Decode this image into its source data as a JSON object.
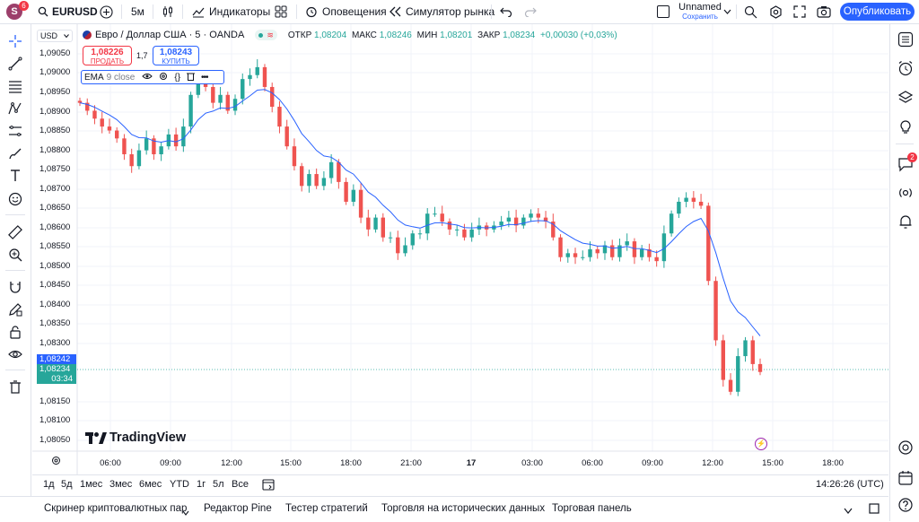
{
  "topbar": {
    "avatar_letter": "S",
    "avatar_badge": "6",
    "symbol": "EURUSD",
    "interval": "5м",
    "indicators": "Индикаторы",
    "alerts": "Оповещения",
    "replay": "Симулятор рынка",
    "layout_name": "Unnamed",
    "layout_status": "Сохранить",
    "publish": "Опубликовать"
  },
  "legend": {
    "title": "Евро / Доллар США · 5 · OANDA",
    "open_label": "ОТКР",
    "open": "1,08204",
    "high_label": "МАКС",
    "high": "1,08246",
    "low_label": "МИН",
    "low": "1,08201",
    "close_label": "ЗАКР",
    "close": "1,08234",
    "change": "+0,00030 (+0,03%)"
  },
  "trade": {
    "sell_price": "1,08226",
    "sell_label": "ПРОДАТЬ",
    "spread": "1,7",
    "buy_price": "1,08243",
    "buy_label": "КУПИТЬ"
  },
  "indicator": {
    "name": "EMA",
    "params": "9 close"
  },
  "currency": "USD",
  "price_axis": [
    "1,09050",
    "1,09000",
    "1,08950",
    "1,08900",
    "1,08850",
    "1,08800",
    "1,08750",
    "1,08700",
    "1,08650",
    "1,08600",
    "1,08550",
    "1,08500",
    "1,08450",
    "1,08400",
    "1,08350",
    "1,08300",
    "1,08150",
    "1,08100",
    "1,08050"
  ],
  "price_tags": {
    "ask": "1,08242",
    "last": "1,08234",
    "countdown": "03:34"
  },
  "time_axis": [
    "06:00",
    "09:00",
    "12:00",
    "15:00",
    "18:00",
    "21:00",
    "17",
    "03:00",
    "06:00",
    "09:00",
    "12:00",
    "15:00",
    "18:00"
  ],
  "watermark": "TradingView",
  "ranges": [
    "1д",
    "5д",
    "1мес",
    "3мес",
    "6мес",
    "YTD",
    "1г",
    "5л",
    "Все"
  ],
  "clock": "14:26:26 (UTC)",
  "bottom_tabs": [
    "Скринер криптовалютных пар",
    "Редактор Pine",
    "Тестер стратегий",
    "Торговля на исторических данных",
    "Торговая панель"
  ],
  "right_badge": "2",
  "colors": {
    "up": "#26a69a",
    "down": "#ef5350",
    "ema": "#2962ff",
    "accent": "#2962ff"
  },
  "chart_data": {
    "type": "candlestick",
    "y_range": [
      1.0803,
      1.0907
    ],
    "candles_close": [
      1.0891,
      1.0889,
      1.0887,
      1.0885,
      1.0884,
      1.0882,
      1.0878,
      1.0875,
      1.0879,
      1.0882,
      1.0878,
      1.088,
      1.0883,
      1.088,
      1.0885,
      1.0893,
      1.0897,
      1.0895,
      1.0891,
      1.0893,
      1.0889,
      1.0892,
      1.0897,
      1.0898,
      1.09,
      1.0895,
      1.089,
      1.0885,
      1.088,
      1.0875,
      1.087,
      1.0873,
      1.087,
      1.0872,
      1.0876,
      1.0871,
      1.0866,
      1.0869,
      1.0862,
      1.0859,
      1.0862,
      1.0857,
      1.0857,
      1.0853,
      1.0855,
      1.0858,
      1.0858,
      1.0863,
      1.0863,
      1.0861,
      1.0859,
      1.0859,
      1.0857,
      1.0859,
      1.086,
      1.0859,
      1.086,
      1.0861,
      1.0862,
      1.086,
      1.0862,
      1.0863,
      1.0862,
      1.0861,
      1.0857,
      1.0852,
      1.0853,
      1.0852,
      1.0852,
      1.0854,
      1.0853,
      1.0855,
      1.0852,
      1.0855,
      1.0856,
      1.0852,
      1.0854,
      1.0852,
      1.0851,
      1.0858,
      1.0863,
      1.0866,
      1.0867,
      1.0866,
      1.0865,
      1.0846,
      1.0831,
      1.0821,
      1.0818,
      1.0827,
      1.0831,
      1.0825,
      1.0823
    ]
  }
}
